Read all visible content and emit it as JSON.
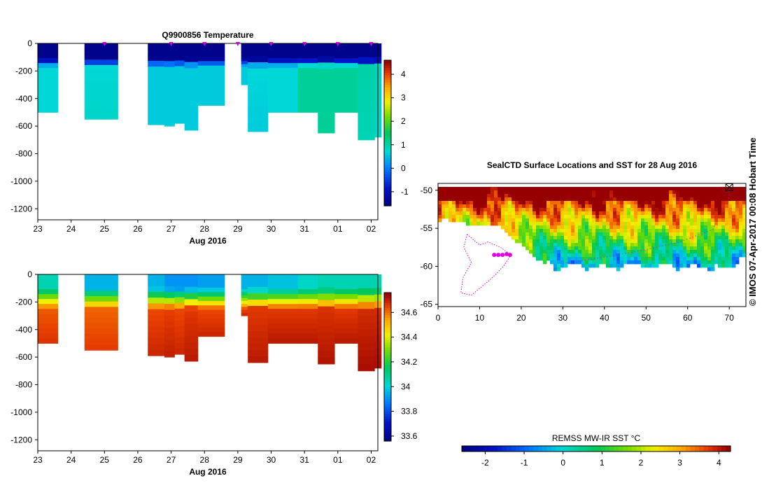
{
  "stamp": "©  IMOS 07-Apr-2017 00:08 Hobart Time",
  "colors": {
    "profile_marker": "#d400d4",
    "track": "#e000e0",
    "land": "#ffffff"
  },
  "chart_data": [
    {
      "id": "temp",
      "type": "heatmap",
      "title": "Q9900856  Temperature",
      "xlabel": "Aug 2016",
      "ylabel": "",
      "x_ticks": [
        "23",
        "24",
        "25",
        "26",
        "27",
        "28",
        "29",
        "30",
        "31",
        "01",
        "02"
      ],
      "y_ticks": [
        "0",
        "-200",
        "-400",
        "-600",
        "-800",
        "-1000",
        "-1200"
      ],
      "ylim": [
        -1280,
        0
      ],
      "colorbar": {
        "ticks": [
          "-1",
          "0",
          "1",
          "2",
          "3",
          "4"
        ],
        "range": [
          -1.6,
          4.6
        ]
      },
      "profiles": [
        {
          "x0": 23.0,
          "x1": 23.6,
          "depth": 500,
          "surface": -1.5,
          "mid": 0.7,
          "deep": 0.7
        },
        {
          "x0": 24.4,
          "x1": 24.9,
          "depth": 550,
          "surface": -1.5,
          "mid": 0.7,
          "deep": 0.8
        },
        {
          "x0": 24.9,
          "x1": 25.4,
          "depth": 550,
          "surface": -1.5,
          "mid": 0.7,
          "deep": 0.8
        },
        {
          "x0": 26.3,
          "x1": 26.8,
          "depth": 590,
          "surface": -1.5,
          "mid": 0.6,
          "deep": 0.6
        },
        {
          "x0": 26.8,
          "x1": 27.1,
          "depth": 600,
          "surface": -1.5,
          "mid": 0.6,
          "deep": 0.6
        },
        {
          "x0": 27.1,
          "x1": 27.4,
          "depth": 580,
          "surface": -1.5,
          "mid": 0.6,
          "deep": 0.6
        },
        {
          "x0": 27.4,
          "x1": 27.8,
          "depth": 630,
          "surface": -1.5,
          "mid": 0.6,
          "deep": 0.6
        },
        {
          "x0": 27.8,
          "x1": 28.6,
          "depth": 450,
          "surface": -1.5,
          "mid": 0.6,
          "deep": 0.6
        },
        {
          "x0": 29.1,
          "x1": 29.3,
          "depth": 300,
          "surface": -1.5,
          "mid": 0.6,
          "deep": 0.6
        },
        {
          "x0": 29.3,
          "x1": 29.9,
          "depth": 640,
          "surface": -1.5,
          "mid": 0.7,
          "deep": 0.6
        },
        {
          "x0": 29.9,
          "x1": 30.8,
          "depth": 500,
          "surface": -1.5,
          "mid": 0.7,
          "deep": 0.7
        },
        {
          "x0": 30.8,
          "x1": 31.4,
          "depth": 500,
          "surface": -1.5,
          "mid": 1.1,
          "deep": 1.1
        },
        {
          "x0": 31.4,
          "x1": 31.9,
          "depth": 650,
          "surface": -1.5,
          "mid": 1.1,
          "deep": 1.1
        },
        {
          "x0": 31.9,
          "x1": 32.6,
          "depth": 500,
          "surface": -1.5,
          "mid": 1.1,
          "deep": 1.1
        },
        {
          "x0": 32.6,
          "x1": 33.1,
          "depth": 700,
          "surface": -1.5,
          "mid": 1.0,
          "deep": 0.9
        },
        {
          "x0": 33.1,
          "x1": 33.3,
          "depth": 680,
          "surface": -1.5,
          "mid": 0.9,
          "deep": 0.8
        }
      ],
      "markers_x": [
        25.0,
        27.0,
        28.0,
        29.0,
        30.0,
        31.0,
        32.0,
        33.0
      ]
    },
    {
      "id": "salinity",
      "type": "heatmap",
      "title": "",
      "xlabel": "Aug 2016",
      "ylabel": "",
      "x_ticks": [
        "23",
        "24",
        "25",
        "26",
        "27",
        "28",
        "29",
        "30",
        "31",
        "01",
        "02"
      ],
      "y_ticks": [
        "0",
        "-200",
        "-400",
        "-600",
        "-800",
        "-1000",
        "-1200"
      ],
      "ylim": [
        -1280,
        0
      ],
      "colorbar": {
        "ticks": [
          "33.6",
          "33.8",
          "34",
          "34.2",
          "34.4",
          "34.6"
        ],
        "range": [
          33.56,
          34.76
        ]
      },
      "profiles": [
        {
          "x0": 23.0,
          "x1": 23.6,
          "depth": 500,
          "surface": 34.05,
          "deep": 34.68
        },
        {
          "x0": 24.4,
          "x1": 24.9,
          "depth": 550,
          "surface": 33.95,
          "deep": 34.67
        },
        {
          "x0": 24.9,
          "x1": 25.4,
          "depth": 550,
          "surface": 33.95,
          "deep": 34.67
        },
        {
          "x0": 26.3,
          "x1": 26.8,
          "depth": 590,
          "surface": 33.95,
          "deep": 34.7
        },
        {
          "x0": 26.8,
          "x1": 27.1,
          "depth": 600,
          "surface": 33.9,
          "deep": 34.71
        },
        {
          "x0": 27.1,
          "x1": 27.4,
          "depth": 580,
          "surface": 33.9,
          "deep": 34.7
        },
        {
          "x0": 27.4,
          "x1": 27.8,
          "depth": 630,
          "surface": 33.9,
          "deep": 34.72
        },
        {
          "x0": 27.8,
          "x1": 28.6,
          "depth": 450,
          "surface": 33.92,
          "deep": 34.7
        },
        {
          "x0": 29.1,
          "x1": 29.3,
          "depth": 300,
          "surface": 33.95,
          "deep": 34.7
        },
        {
          "x0": 29.3,
          "x1": 29.9,
          "depth": 640,
          "surface": 33.95,
          "deep": 34.72
        },
        {
          "x0": 29.9,
          "x1": 30.8,
          "depth": 500,
          "surface": 33.97,
          "deep": 34.72
        },
        {
          "x0": 30.8,
          "x1": 31.4,
          "depth": 500,
          "surface": 34.02,
          "deep": 34.72
        },
        {
          "x0": 31.4,
          "x1": 31.9,
          "depth": 650,
          "surface": 34.05,
          "deep": 34.73
        },
        {
          "x0": 31.9,
          "x1": 32.6,
          "depth": 500,
          "surface": 34.05,
          "deep": 34.72
        },
        {
          "x0": 32.6,
          "x1": 33.1,
          "depth": 700,
          "surface": 34.05,
          "deep": 34.74
        },
        {
          "x0": 33.1,
          "x1": 33.3,
          "depth": 680,
          "surface": 34.05,
          "deep": 34.74
        }
      ]
    },
    {
      "id": "sst",
      "type": "heatmap",
      "title": "SealCTD Surface Locations and SST for 28 Aug 2016",
      "xlabel": "",
      "ylabel": "",
      "x_ticks": [
        "0",
        "10",
        "20",
        "30",
        "40",
        "50",
        "60",
        "70"
      ],
      "y_ticks": [
        "-50",
        "-55",
        "-60",
        "-65"
      ],
      "xlim": [
        0,
        74
      ],
      "ylim": [
        -65.3,
        -49.1
      ],
      "colorbar": {
        "label": "REMSS MW-IR SST °C",
        "ticks": [
          "-2",
          "-1",
          "0",
          "1",
          "2",
          "3",
          "4"
        ],
        "range": [
          -2.6,
          4.3
        ]
      },
      "profile_positions": [
        [
          13.5,
          -58.5
        ],
        [
          14.5,
          -58.5
        ],
        [
          15.5,
          -58.5
        ],
        [
          16.5,
          -58.4
        ],
        [
          17.3,
          -58.5
        ]
      ],
      "station_lon": 70,
      "station_lat": -49.6
    }
  ]
}
